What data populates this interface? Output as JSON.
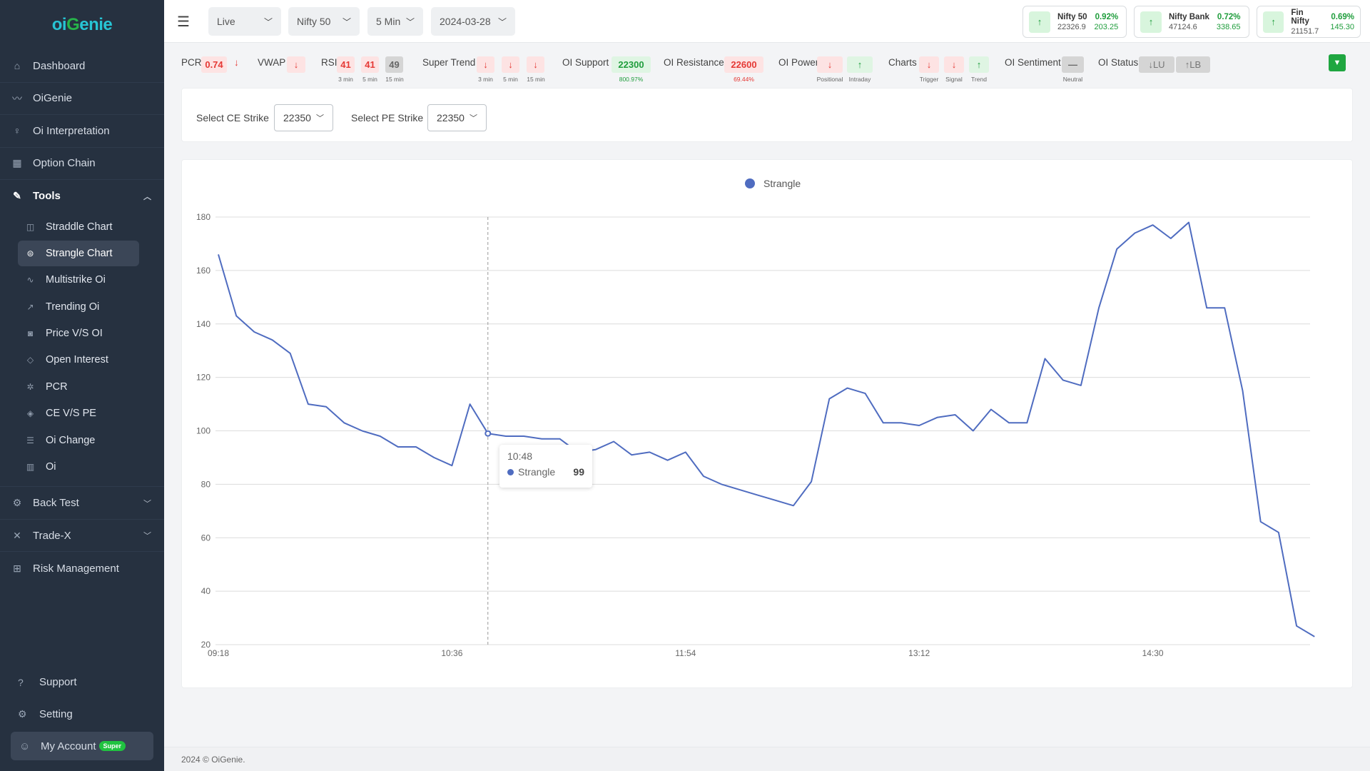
{
  "logo": {
    "part1": "oi",
    "part2": "G",
    "part3": "enie"
  },
  "sidebar": {
    "items": [
      {
        "label": "Dashboard",
        "icon": "house-icon"
      },
      {
        "label": "OiGenie",
        "icon": "wave-icon"
      },
      {
        "label": "Oi Interpretation",
        "icon": "bulb-icon"
      },
      {
        "label": "Option Chain",
        "icon": "grid-icon"
      }
    ],
    "tools": {
      "label": "Tools",
      "icon": "wrench-icon"
    },
    "tool_items": [
      {
        "label": "Straddle Chart",
        "icon": "chart-box-icon"
      },
      {
        "label": "Strangle Chart",
        "icon": "strangle-icon",
        "active": true
      },
      {
        "label": "Multistrike Oi",
        "icon": "zigzag-icon"
      },
      {
        "label": "Trending Oi",
        "icon": "trend-icon"
      },
      {
        "label": "Price V/S OI",
        "icon": "camera-icon"
      },
      {
        "label": "Open Interest",
        "icon": "diamond-icon"
      },
      {
        "label": "PCR",
        "icon": "gear-outline-icon"
      },
      {
        "label": "CE V/S PE",
        "icon": "shield-icon"
      },
      {
        "label": "Oi Change",
        "icon": "trash-icon"
      },
      {
        "label": "Oi",
        "icon": "bars-icon"
      }
    ],
    "after": [
      {
        "label": "Back Test",
        "icon": "cog-icon"
      },
      {
        "label": "Trade-X",
        "icon": "x-icon"
      },
      {
        "label": "Risk Management",
        "icon": "barrier-icon"
      }
    ],
    "bottom": [
      {
        "label": "Support",
        "icon": "question-icon"
      },
      {
        "label": "Setting",
        "icon": "settings-icon"
      }
    ],
    "account": {
      "label": "My Account",
      "badge": "Super"
    }
  },
  "topbar": {
    "mode": "Live",
    "index": "Nifty 50",
    "interval": "5 Min",
    "date": "2024-03-28",
    "tickers": [
      {
        "name": "Nifty 50",
        "value": "22326.9",
        "pct": "0.92%",
        "change": "203.25"
      },
      {
        "name": "Nifty Bank",
        "value": "47124.6",
        "pct": "0.72%",
        "change": "338.65"
      },
      {
        "name": "Fin Nifty",
        "value": "21151.7",
        "pct": "0.69%",
        "change": "145.30"
      }
    ]
  },
  "indicators": {
    "pcr_label": "PCR",
    "pcr_value": "0.74",
    "vwap_label": "VWAP",
    "rsi_label": "RSI",
    "rsi_values": [
      "41",
      "41",
      "49"
    ],
    "rsi_tf": [
      "3 min",
      "5 min",
      "15 min"
    ],
    "st_label": "Super Trend",
    "st_tf": [
      "3 min",
      "5 min",
      "15 min"
    ],
    "support_label": "OI Support",
    "support_value": "22300",
    "support_pct": "800.97%",
    "resistance_label": "OI Resistance",
    "resistance_value": "22600",
    "resistance_pct": "69.44%",
    "power_label": "OI Power",
    "power_tf": [
      "Positional",
      "Intraday"
    ],
    "charts_label": "Charts",
    "charts_tf": [
      "Trigger",
      "Signal",
      "Trend"
    ],
    "sentiment_label": "OI Sentiment",
    "sentiment_value": "—",
    "sentiment_sub": "Neutral",
    "status_label": "OI Status",
    "status_values": [
      "↓LU",
      "↑LB"
    ]
  },
  "strike": {
    "ce_label": "Select CE Strike",
    "ce_value": "22350",
    "pe_label": "Select PE Strike",
    "pe_value": "22350"
  },
  "tooltip": {
    "time": "10:48",
    "series": "Strangle",
    "value": "99"
  },
  "footer": {
    "text": "2024 © OiGenie."
  },
  "colors": {
    "accent": "#4f6cc0",
    "sidebar": "#263140",
    "up": "#1f9d3c",
    "down": "#e53935"
  },
  "chart_data": {
    "type": "line",
    "series": [
      {
        "name": "Strangle",
        "values": [
          166,
          143,
          137,
          134,
          129,
          110,
          109,
          103,
          100,
          98,
          94,
          94,
          90,
          87,
          110,
          99,
          98,
          98,
          97,
          97,
          92,
          93,
          96,
          91,
          92,
          89,
          92,
          83,
          80,
          78,
          76,
          74,
          72,
          81,
          112,
          116,
          114,
          103,
          103,
          102,
          105,
          106,
          100,
          108,
          103,
          103,
          127,
          119,
          117,
          146,
          168,
          174,
          177,
          172,
          178,
          146,
          146,
          115,
          66,
          62,
          27,
          23
        ]
      }
    ],
    "x_ticks": [
      "09:18",
      "10:36",
      "11:54",
      "13:12",
      "14:30"
    ],
    "y_ticks": [
      "20",
      "40",
      "60",
      "80",
      "100",
      "120",
      "140",
      "160",
      "180"
    ],
    "ylim": [
      20,
      180
    ],
    "grid": true,
    "legend": "top-center"
  }
}
